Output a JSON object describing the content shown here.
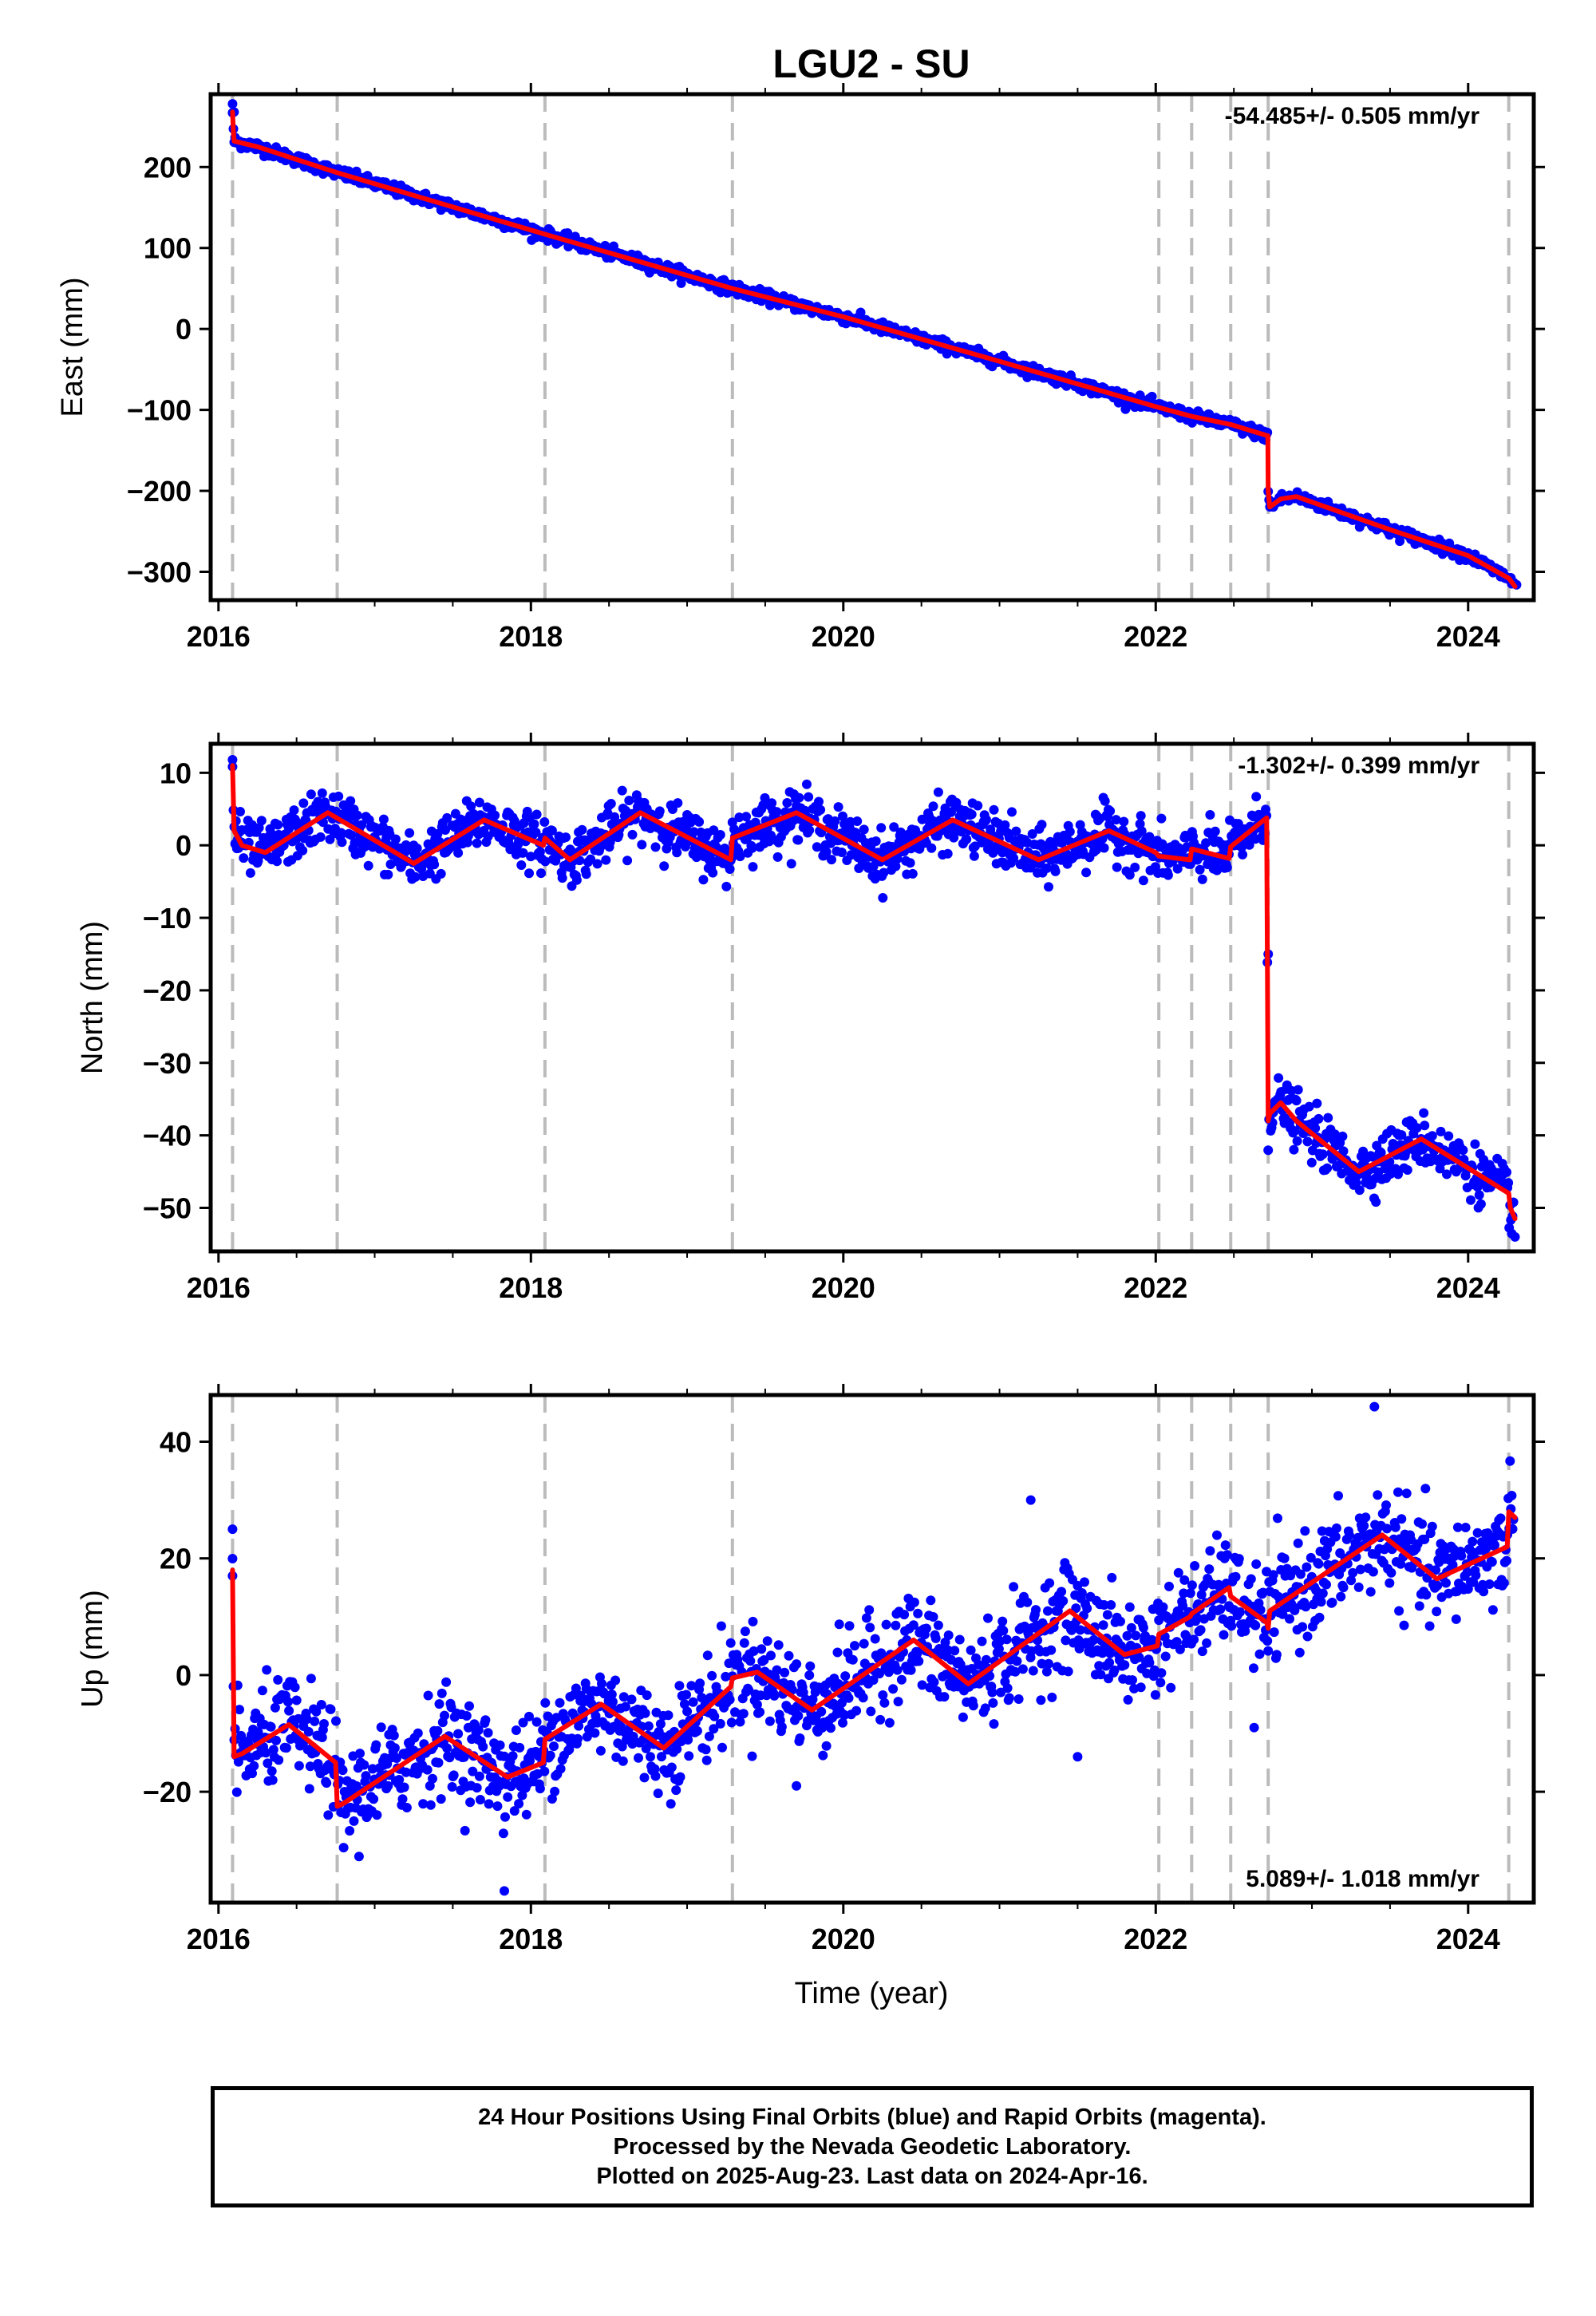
{
  "title": "LGU2 - SU",
  "colors": {
    "points": "#0000ff",
    "model": "#ff0000",
    "event_lines": "#bbbbbb",
    "axes": "#000000"
  },
  "footer": {
    "line1": "24 Hour Positions Using Final Orbits (blue) and Rapid Orbits (magenta).",
    "line2": "Processed by the Nevada Geodetic Laboratory.",
    "line3": "Plotted on 2025-Aug-23. Last data on 2024-Apr-16."
  },
  "chart_data": [
    {
      "type": "scatter",
      "component": "east",
      "ylabel": "East (mm)",
      "xlabel": "",
      "rate_label": "-54.485+/- 0.505 mm/yr",
      "rate_position": "top-right",
      "xlim": [
        2015.95,
        2024.42
      ],
      "ylim": [
        -335,
        290
      ],
      "xticks": [
        2016,
        2018,
        2020,
        2022,
        2024
      ],
      "xtick_labels": [
        "2016",
        "2018",
        "2020",
        "2022",
        "2024"
      ],
      "yticks": [
        200,
        100,
        0,
        -100,
        -200,
        -300
      ],
      "ytick_labels": [
        "200",
        "100",
        "0",
        "−100",
        "−200",
        "−300"
      ],
      "event_lines": [
        2016.09,
        2016.76,
        2018.09,
        2019.29,
        2022.02,
        2022.23,
        2022.48,
        2022.72,
        2024.26
      ],
      "model": {
        "x": [
          2016.09,
          2016.095,
          2016.1,
          2016.25,
          2016.76,
          2018.09,
          2019.29,
          2020.0,
          2021.0,
          2022.02,
          2022.23,
          2022.48,
          2022.718,
          2022.72,
          2022.73,
          2022.8,
          2022.9,
          2023.5,
          2024.0,
          2024.26,
          2024.3
        ],
        "y": [
          268,
          245,
          232,
          225,
          193,
          117,
          50,
          15,
          -40,
          -97,
          -108,
          -118,
          -132,
          -200,
          -220,
          -210,
          -207,
          -248,
          -280,
          -308,
          -318
        ]
      },
      "scatter": {
        "noise_mm": 3.5,
        "outliers": [
          [
            2016.09,
            278
          ],
          [
            2016.1,
            268
          ],
          [
            2024.31,
            -316
          ]
        ]
      }
    },
    {
      "type": "scatter",
      "component": "north",
      "ylabel": "North (mm)",
      "xlabel": "",
      "rate_label": "-1.302+/- 0.399 mm/yr",
      "rate_position": "top-right",
      "xlim": [
        2015.95,
        2024.42
      ],
      "ylim": [
        -56,
        14
      ],
      "xticks": [
        2016,
        2018,
        2020,
        2022,
        2024
      ],
      "xtick_labels": [
        "2016",
        "2018",
        "2020",
        "2022",
        "2024"
      ],
      "yticks": [
        10,
        0,
        -10,
        -20,
        -30,
        -40,
        -50
      ],
      "ytick_labels": [
        "10",
        "0",
        "−10",
        "−20",
        "−30",
        "−40",
        "−50"
      ],
      "event_lines": [
        2016.09,
        2016.76,
        2018.09,
        2019.29,
        2022.02,
        2022.23,
        2022.48,
        2022.72,
        2024.26
      ],
      "model": {
        "x": [
          2016.09,
          2016.1,
          2016.15,
          2016.3,
          2016.7,
          2017.25,
          2017.7,
          2018.08,
          2018.09,
          2018.25,
          2018.7,
          2019.28,
          2019.29,
          2019.7,
          2020.25,
          2020.7,
          2021.25,
          2021.7,
          2022.0,
          2022.02,
          2022.22,
          2022.23,
          2022.47,
          2022.48,
          2022.71,
          2022.72,
          2022.73,
          2022.8,
          2022.9,
          2023.3,
          2023.7,
          2024.26,
          2024.27,
          2024.3
        ],
        "y": [
          11,
          2,
          0,
          -1,
          4.5,
          -2.5,
          3.5,
          0,
          1,
          -2,
          4.5,
          -2,
          1,
          4.5,
          -2,
          3.5,
          -2,
          2,
          -1,
          -1.5,
          -2,
          -0.5,
          -1.8,
          -0.2,
          3.8,
          -38,
          -37,
          -35.5,
          -38,
          -45,
          -40.5,
          -48,
          -50,
          -51.5
        ]
      },
      "scatter": {
        "noise_mm": 1.8,
        "outliers": [
          [
            2016.09,
            11.8
          ],
          [
            2022.72,
            -15
          ],
          [
            2024.3,
            -54
          ]
        ]
      }
    },
    {
      "type": "scatter",
      "component": "up",
      "ylabel": "Up (mm)",
      "xlabel": "Time (year)",
      "rate_label": "5.089+/- 1.018 mm/yr",
      "rate_position": "bottom-right",
      "xlim": [
        2015.95,
        2024.42
      ],
      "ylim": [
        -39,
        48
      ],
      "xticks": [
        2016,
        2018,
        2020,
        2022,
        2024
      ],
      "xtick_labels": [
        "2016",
        "2018",
        "2020",
        "2022",
        "2024"
      ],
      "yticks": [
        40,
        20,
        0,
        -20
      ],
      "ytick_labels": [
        "40",
        "20",
        "0",
        "−20"
      ],
      "event_lines": [
        2016.09,
        2016.76,
        2018.09,
        2019.29,
        2022.02,
        2022.23,
        2022.48,
        2022.72,
        2024.26
      ],
      "model": {
        "x": [
          2016.09,
          2016.1,
          2016.15,
          2016.45,
          2016.75,
          2016.76,
          2016.8,
          2017.45,
          2017.85,
          2018.08,
          2018.09,
          2018.45,
          2018.85,
          2019.28,
          2019.29,
          2019.45,
          2019.8,
          2020.45,
          2020.8,
          2021.45,
          2021.8,
          2022.01,
          2022.02,
          2022.22,
          2022.23,
          2022.47,
          2022.48,
          2022.71,
          2022.72,
          2022.73,
          2023.45,
          2023.8,
          2024.25,
          2024.26,
          2024.3
        ],
        "y": [
          18,
          -14,
          -13.5,
          -8.5,
          -15,
          -22.5,
          -22,
          -10.5,
          -17.5,
          -15,
          -11,
          -5,
          -12.5,
          -2,
          -0.5,
          0.5,
          -6,
          6,
          -1.5,
          11,
          3.5,
          5,
          7,
          10,
          10.5,
          15,
          13.5,
          9,
          8,
          11,
          24,
          16.5,
          22,
          28,
          27
        ]
      },
      "scatter": {
        "noise_mm": 4.2,
        "outliers": [
          [
            2016.09,
            25
          ],
          [
            2016.09,
            17
          ],
          [
            2017.83,
            -37
          ],
          [
            2023.4,
            46
          ],
          [
            2021.2,
            30
          ],
          [
            2022.63,
            -9
          ],
          [
            2021.5,
            -14
          ],
          [
            2019.7,
            -19
          ]
        ]
      }
    }
  ]
}
